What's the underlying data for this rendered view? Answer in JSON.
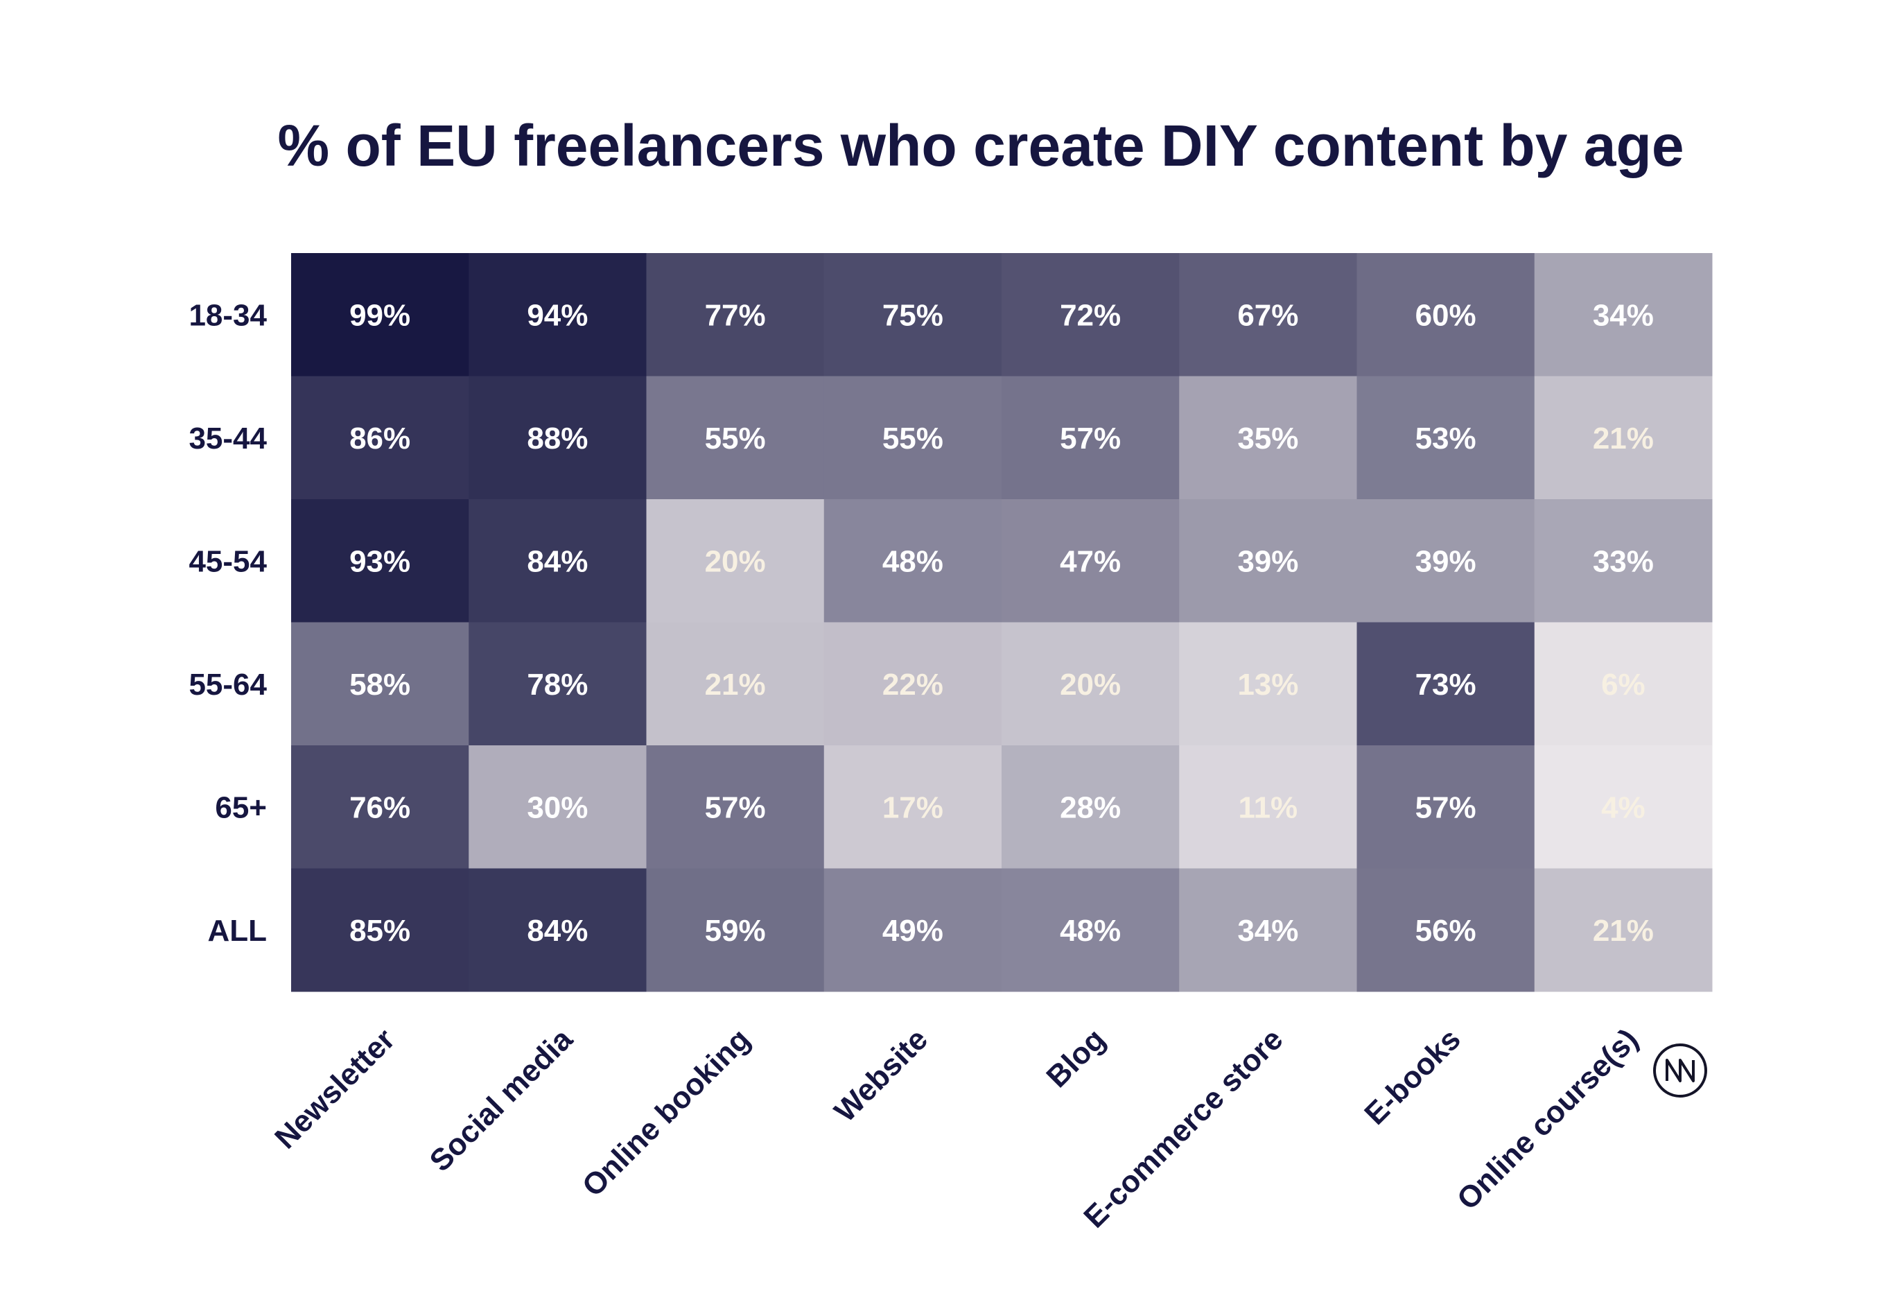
{
  "chart_data": {
    "type": "heatmap",
    "title": "% of EU freelancers who create DIY content by age",
    "rows": [
      "18-34",
      "35-44",
      "45-54",
      "55-64",
      "65+",
      "ALL"
    ],
    "columns": [
      "Newsletter",
      "Social media",
      "Online booking",
      "Website",
      "Blog",
      "E-commerce store",
      "E-books",
      "Online course(s)"
    ],
    "values": [
      [
        99,
        94,
        77,
        75,
        72,
        67,
        60,
        34
      ],
      [
        86,
        88,
        55,
        55,
        57,
        35,
        53,
        21
      ],
      [
        93,
        84,
        20,
        48,
        47,
        39,
        39,
        33
      ],
      [
        58,
        78,
        21,
        22,
        20,
        13,
        73,
        6
      ],
      [
        76,
        30,
        57,
        17,
        28,
        11,
        57,
        4
      ],
      [
        85,
        84,
        59,
        49,
        48,
        34,
        56,
        21
      ]
    ],
    "value_suffix": "%",
    "colors": {
      "dark": "#161640",
      "light": "#f2eef0",
      "label_on_dark": "#ffffff",
      "label_on_light": "#f7f0e2",
      "axis_text": "#161640"
    }
  },
  "logo": {
    "icon": "monogram-nm-icon"
  }
}
